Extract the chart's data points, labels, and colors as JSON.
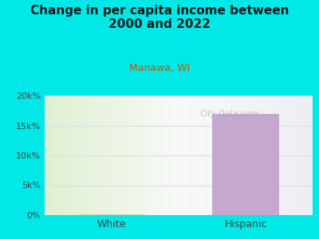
{
  "title": "Change in per capita income between\n2000 and 2022",
  "subtitle": "Manawa, WI",
  "categories": [
    "White",
    "Hispanic"
  ],
  "values": [
    150,
    17000
  ],
  "ylim": [
    0,
    20000
  ],
  "yticks": [
    0,
    5000,
    10000,
    15000,
    20000
  ],
  "ytick_labels": [
    "0%",
    "5k%",
    "10k%",
    "15k%",
    "20k%"
  ],
  "bar_colors": [
    "#c8ddb0",
    "#c4a8d0"
  ],
  "background_color": "#00e8e8",
  "title_fontsize": 11,
  "subtitle_fontsize": 9,
  "subtitle_color": "#b85c00",
  "title_color": "#1a1a1a",
  "watermark": "City-Data.com",
  "bar_width": 0.5,
  "grid_color": "#e0dce8",
  "tick_label_color": "#444444"
}
